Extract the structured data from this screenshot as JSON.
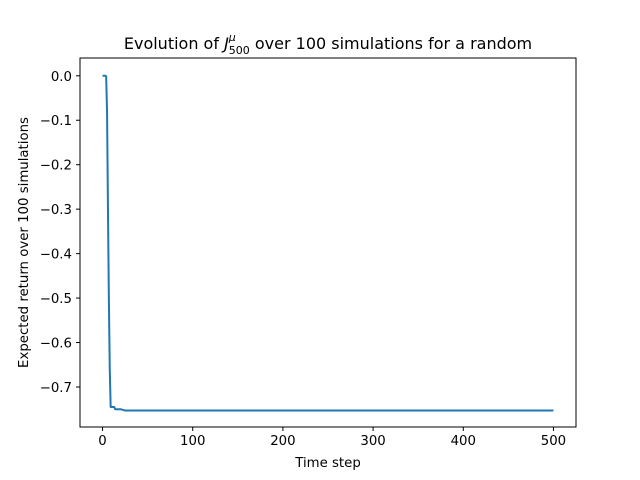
{
  "chart_data": {
    "type": "line",
    "title": {
      "prefix": "Evolution of ",
      "symbol": "J",
      "superscript": "μ",
      "subscript": "500",
      "suffix": " over 100 simulations for a random"
    },
    "xlabel": "Time step",
    "ylabel": "Expected return over 100 simulations",
    "xlim": [
      -25,
      525
    ],
    "ylim": [
      -0.79,
      0.04
    ],
    "xticks": [
      0,
      100,
      200,
      300,
      400,
      500
    ],
    "xtick_labels": [
      "0",
      "100",
      "200",
      "300",
      "400",
      "500"
    ],
    "yticks": [
      0.0,
      -0.1,
      -0.2,
      -0.3,
      -0.4,
      -0.5,
      -0.6,
      -0.7
    ],
    "ytick_labels": [
      "0.0",
      "−0.1",
      "−0.2",
      "−0.3",
      "−0.4",
      "−0.5",
      "−0.6",
      "−0.7"
    ],
    "grid": false,
    "line_color": "#1f77b4",
    "series": [
      {
        "x": [
          0,
          1,
          2,
          3,
          4,
          5,
          6,
          7,
          8,
          9,
          10,
          11,
          12,
          13,
          14,
          15,
          20,
          25,
          30,
          40,
          100,
          200,
          300,
          400,
          500
        ],
        "y": [
          0.0,
          0.0,
          0.0,
          0.0,
          -0.001,
          -0.08,
          -0.3,
          -0.5,
          -0.66,
          -0.745,
          -0.745,
          -0.745,
          -0.745,
          -0.745,
          -0.75,
          -0.75,
          -0.75,
          -0.753,
          -0.753,
          -0.753,
          -0.753,
          -0.753,
          -0.753,
          -0.753,
          -0.753
        ]
      }
    ]
  }
}
